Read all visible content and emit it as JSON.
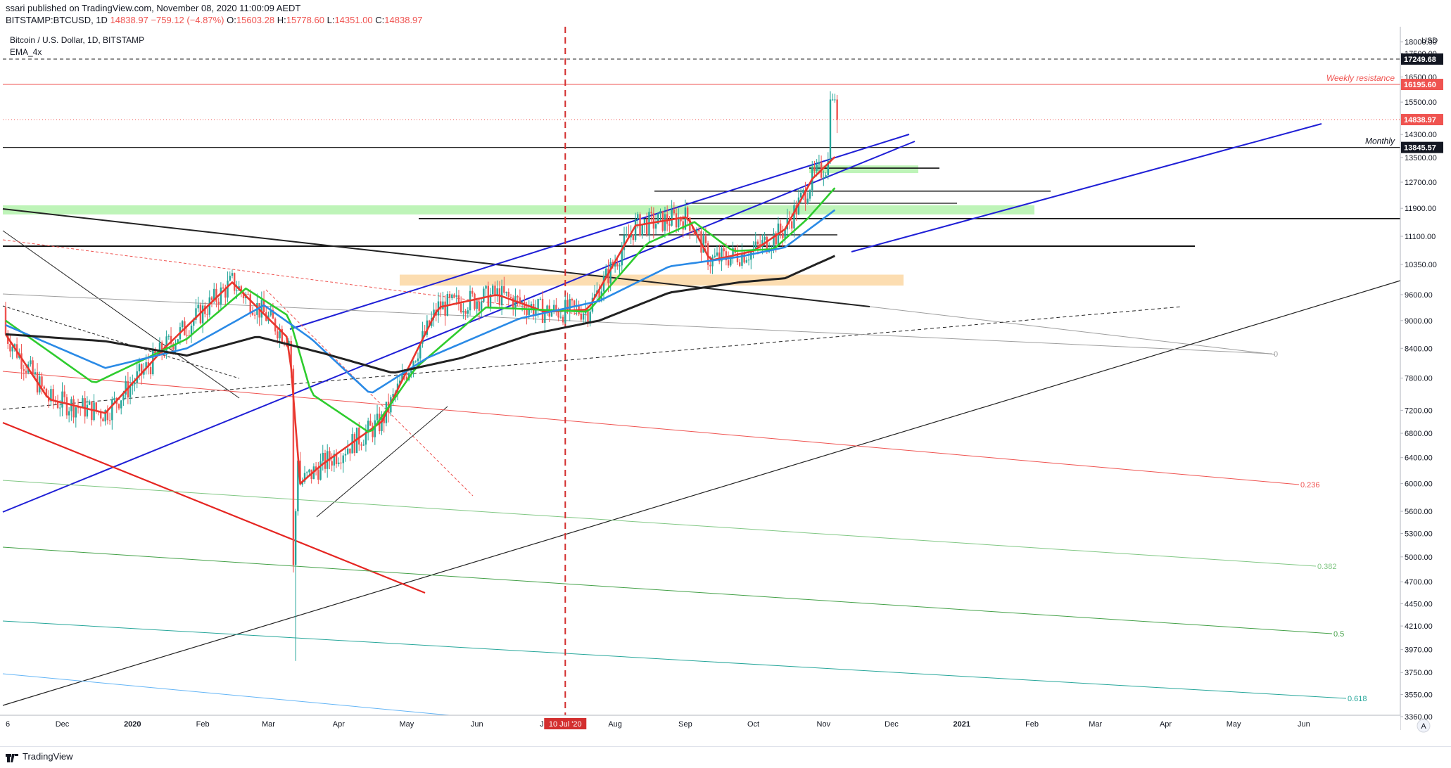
{
  "header": {
    "publisher_line": "ssari published on TradingView.com, November 08, 2020 11:00:09 AEDT",
    "symbol": "BITSTAMP:BTCUSD, 1D",
    "last": "14838.97",
    "change": "−759.12 (−4.87%)",
    "open_label": "O:",
    "open": "15603.28",
    "high_label": "H:",
    "high": "15778.60",
    "low_label": "L:",
    "low": "14351.00",
    "close_label": "C:",
    "close": "14838.97"
  },
  "legend": {
    "title": "Bitcoin / U.S. Dollar, 1D, BITSTAMP",
    "indicator": "EMA_4x"
  },
  "currency_label": "USD",
  "footer": {
    "brand": "TradingView"
  },
  "colors": {
    "up": "#26a69a",
    "down": "#ef5350",
    "resistance": "#ef5350",
    "channel": "#1f1fd6",
    "ema_red": "#e8362d",
    "ema_green": "#2ecc2e",
    "ema_blue": "#2a8ae6",
    "ema_black": "#222222",
    "zone_green": "#b7f3b0",
    "zone_orange": "#fcd9a8",
    "vline": "#d32f2f"
  },
  "chart_data": {
    "type": "candlestick",
    "title": "Bitcoin / U.S. Dollar, 1D, BITSTAMP",
    "indicators": [
      "EMA_4x"
    ],
    "scale": "log",
    "ylim": [
      3360,
      19000
    ],
    "y_ticks": [
      18000,
      17500,
      16500,
      15500,
      14300,
      13500,
      12700,
      11900,
      11100,
      10350,
      9600,
      9000,
      8400,
      7800,
      7200,
      6800,
      6400,
      6000,
      5600,
      5300,
      5000,
      4700,
      4450,
      4210,
      3970,
      3750,
      3550,
      3360
    ],
    "x_ticks": [
      "6",
      "Dec",
      "2020",
      "Feb",
      "Mar",
      "Apr",
      "May",
      "Jun",
      "Jul",
      "Aug",
      "Sep",
      "Oct",
      "Nov",
      "Dec",
      "2021",
      "Feb",
      "Mar",
      "Apr",
      "May",
      "Jun"
    ],
    "x_range": [
      "2019-11-06",
      "2021-06-15"
    ],
    "price_labels": [
      {
        "value": "17249.68",
        "style": "black"
      },
      {
        "value": "16195.60",
        "style": "red"
      },
      {
        "value": "14838.97",
        "style": "red"
      },
      {
        "value": "13845.57",
        "style": "black"
      }
    ],
    "annotations": [
      {
        "text": "Weekly resistance",
        "price": 16195.6
      },
      {
        "text": "Monthly",
        "price": 13845.57
      }
    ],
    "date_marker": "10 Jul '20",
    "fib_levels": [
      "0",
      "0.236",
      "0.382",
      "0.5",
      "0.618"
    ],
    "series": [
      {
        "key": "ema_red",
        "points": [
          [
            "2019-11-06",
            8700
          ],
          [
            "2019-11-25",
            7400
          ],
          [
            "2019-12-20",
            7150
          ],
          [
            "2020-01-15",
            8400
          ],
          [
            "2020-02-14",
            9900
          ],
          [
            "2020-03-10",
            8600
          ],
          [
            "2020-03-15",
            6000
          ],
          [
            "2020-03-25",
            6300
          ],
          [
            "2020-04-20",
            7000
          ],
          [
            "2020-05-15",
            9300
          ],
          [
            "2020-06-10",
            9600
          ],
          [
            "2020-07-01",
            9200
          ],
          [
            "2020-07-20",
            9250
          ],
          [
            "2020-08-10",
            11400
          ],
          [
            "2020-09-02",
            11650
          ],
          [
            "2020-09-12",
            10450
          ],
          [
            "2020-10-01",
            10700
          ],
          [
            "2020-10-15",
            11300
          ],
          [
            "2020-10-27",
            12800
          ],
          [
            "2020-11-07",
            13600
          ]
        ]
      },
      {
        "key": "ema_green",
        "points": [
          [
            "2019-11-06",
            9000
          ],
          [
            "2019-12-15",
            7700
          ],
          [
            "2020-01-25",
            8600
          ],
          [
            "2020-02-20",
            9750
          ],
          [
            "2020-03-10",
            9100
          ],
          [
            "2020-03-20",
            7500
          ],
          [
            "2020-04-15",
            6800
          ],
          [
            "2020-05-05",
            8000
          ],
          [
            "2020-06-05",
            9300
          ],
          [
            "2020-07-20",
            9200
          ],
          [
            "2020-08-15",
            10900
          ],
          [
            "2020-09-05",
            11500
          ],
          [
            "2020-09-22",
            10700
          ],
          [
            "2020-10-10",
            10750
          ],
          [
            "2020-10-25",
            11600
          ],
          [
            "2020-11-07",
            12600
          ]
        ]
      },
      {
        "key": "ema_blue",
        "points": [
          [
            "2019-11-06",
            8900
          ],
          [
            "2019-12-20",
            8000
          ],
          [
            "2020-01-25",
            8400
          ],
          [
            "2020-02-28",
            9350
          ],
          [
            "2020-03-20",
            8600
          ],
          [
            "2020-04-15",
            7500
          ],
          [
            "2020-05-10",
            8200
          ],
          [
            "2020-06-20",
            9050
          ],
          [
            "2020-07-25",
            9450
          ],
          [
            "2020-08-25",
            10300
          ],
          [
            "2020-09-25",
            10550
          ],
          [
            "2020-10-15",
            10800
          ],
          [
            "2020-11-07",
            11900
          ]
        ]
      },
      {
        "key": "ema_black",
        "points": [
          [
            "2019-11-06",
            8700
          ],
          [
            "2019-12-20",
            8550
          ],
          [
            "2020-01-25",
            8250
          ],
          [
            "2020-02-25",
            8650
          ],
          [
            "2020-03-25",
            8300
          ],
          [
            "2020-04-25",
            7900
          ],
          [
            "2020-05-25",
            8200
          ],
          [
            "2020-06-25",
            8700
          ],
          [
            "2020-07-25",
            9000
          ],
          [
            "2020-08-25",
            9650
          ],
          [
            "2020-09-25",
            9900
          ],
          [
            "2020-10-15",
            10000
          ],
          [
            "2020-11-07",
            10600
          ]
        ]
      }
    ]
  }
}
